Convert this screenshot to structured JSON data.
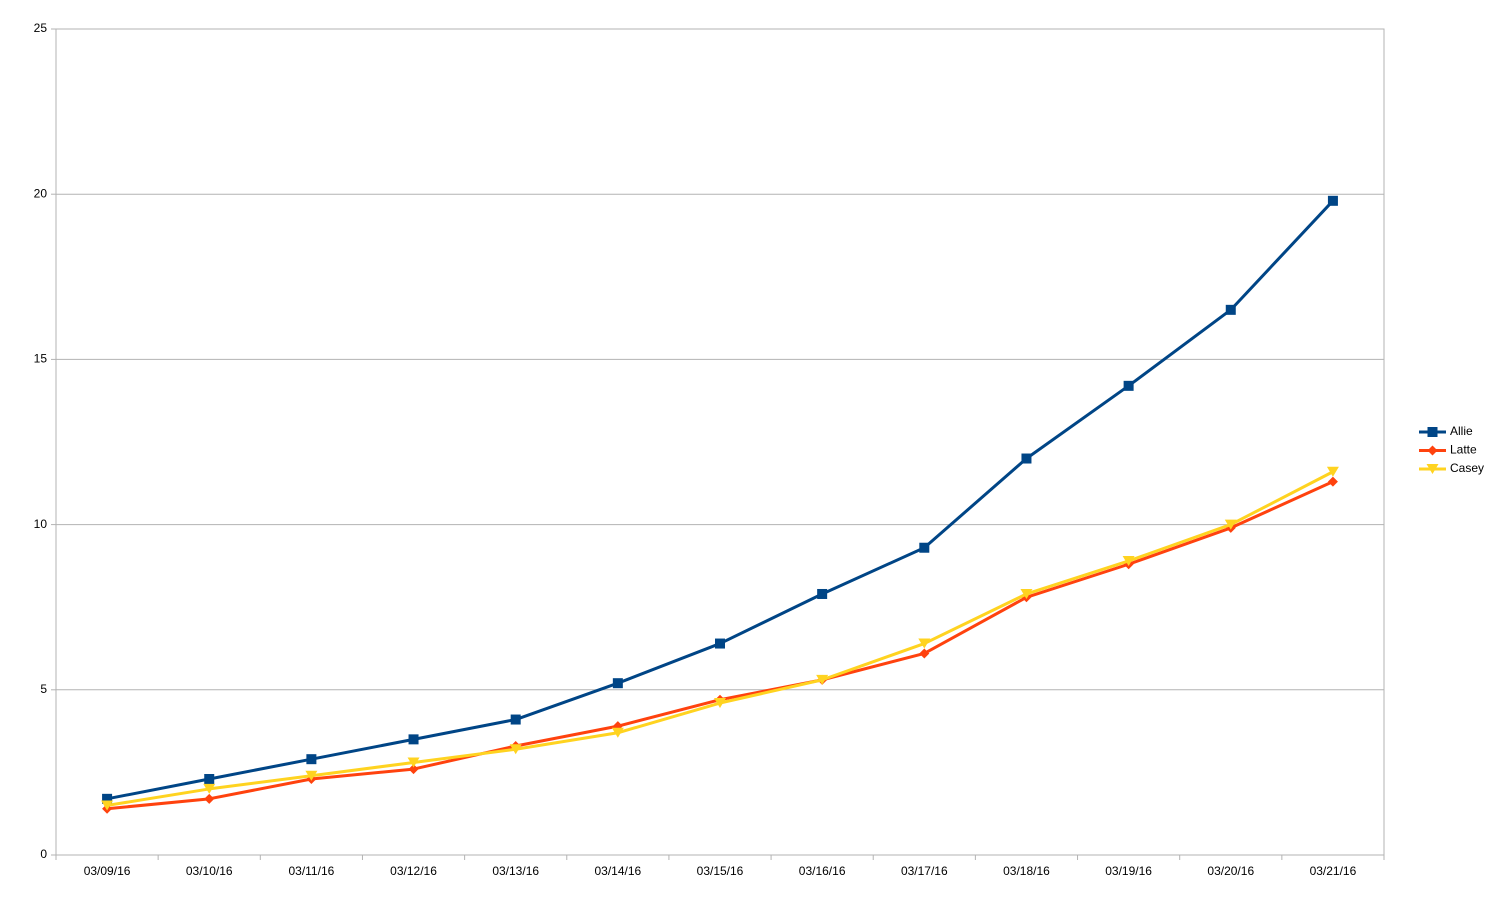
{
  "chart_data": {
    "type": "line",
    "categories": [
      "03/09/16",
      "03/10/16",
      "03/11/16",
      "03/12/16",
      "03/13/16",
      "03/14/16",
      "03/15/16",
      "03/16/16",
      "03/17/16",
      "03/18/16",
      "03/19/16",
      "03/20/16",
      "03/21/16"
    ],
    "series": [
      {
        "name": "Allie",
        "color": "#004586",
        "marker": "square",
        "values": [
          1.7,
          2.3,
          2.9,
          3.5,
          4.1,
          5.2,
          6.4,
          7.9,
          9.3,
          12.0,
          14.2,
          16.5,
          19.8
        ]
      },
      {
        "name": "Latte",
        "color": "#ff420e",
        "marker": "diamond",
        "values": [
          1.4,
          1.7,
          2.3,
          2.6,
          3.3,
          3.9,
          4.7,
          5.3,
          6.1,
          7.8,
          8.8,
          9.9,
          11.3
        ]
      },
      {
        "name": "Casey",
        "color": "#ffd320",
        "marker": "triangle-down",
        "values": [
          1.5,
          2.0,
          2.4,
          2.8,
          3.2,
          3.7,
          4.6,
          5.3,
          6.4,
          7.9,
          8.9,
          10.0,
          11.6
        ]
      }
    ],
    "ylim": [
      0,
      25
    ],
    "yticks": [
      0,
      5,
      10,
      15,
      20,
      25
    ],
    "grid": true,
    "legend": "right"
  }
}
